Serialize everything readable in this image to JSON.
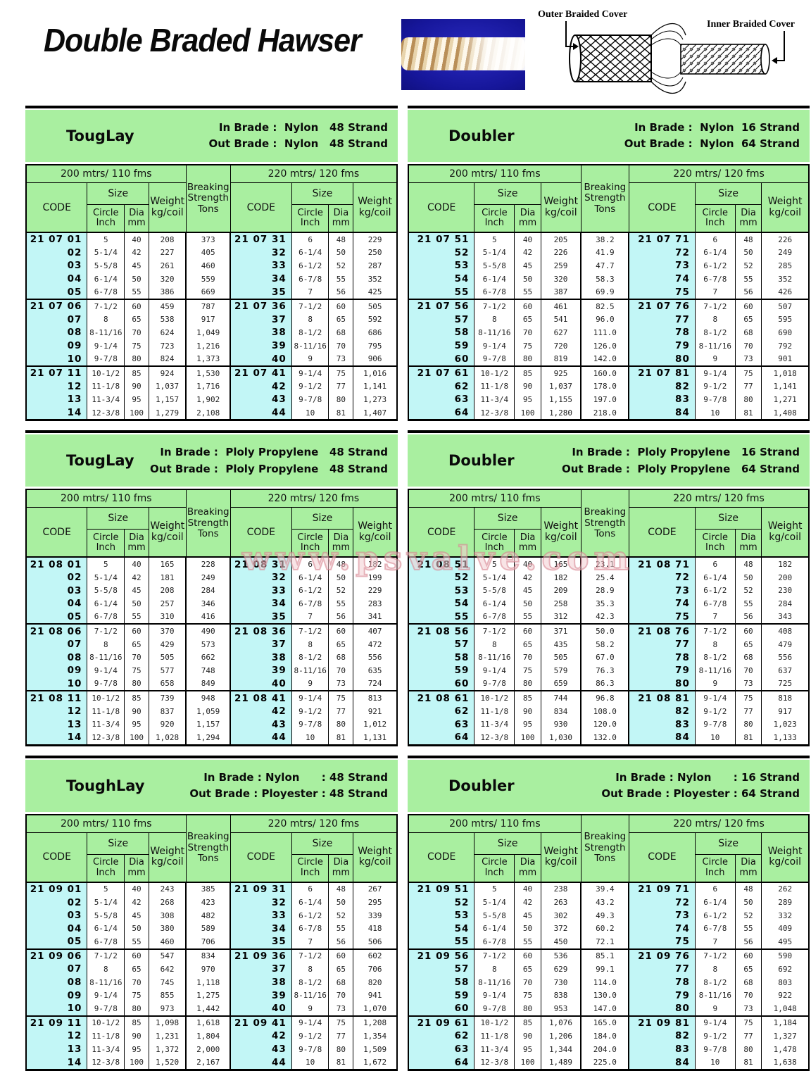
{
  "page": {
    "title": "Double Braded Hawser",
    "watermark": "www.psvalve.com"
  },
  "diagram": {
    "outer_label": "Outer Braided Cover",
    "inner_label": "Inner Braided Cover"
  },
  "table_headers": {
    "span_200": "200 mtrs/ 110 fms",
    "span_220": "220 mtrs/ 120 fms",
    "code": "CODE",
    "size": "Size",
    "circle": "Circle\nInch",
    "dia": "Dia\nmm",
    "weight": "Weight\nkg/coil",
    "breaking": "Breaking\nStrength\nTons"
  },
  "colors": {
    "band_green": "#a9efa0",
    "code_cyan": "#c2f6f6",
    "watermark_pink": "#d5808c"
  },
  "tables": [
    {
      "name": "TougLay",
      "in_brade": "In Brade :  Nylon   48 Strand",
      "out_brade": "Out Brade :  Nylon   48 Strand",
      "rows": [
        [
          "21 07 01",
          "5",
          "40",
          "208",
          "373",
          "21 07 31",
          "6",
          "48",
          "229"
        ],
        [
          "02",
          "5-1/4",
          "42",
          "227",
          "405",
          "32",
          "6-1/4",
          "50",
          "250"
        ],
        [
          "03",
          "5-5/8",
          "45",
          "261",
          "460",
          "33",
          "6-1/2",
          "52",
          "287"
        ],
        [
          "04",
          "6-1/4",
          "50",
          "320",
          "559",
          "34",
          "6-7/8",
          "55",
          "352"
        ],
        [
          "05",
          "6-7/8",
          "55",
          "386",
          "669",
          "35",
          "7",
          "56",
          "425"
        ],
        [
          "21 07 06",
          "7-1/2",
          "60",
          "459",
          "787",
          "21 07 36",
          "7-1/2",
          "60",
          "505"
        ],
        [
          "07",
          "8",
          "65",
          "538",
          "917",
          "37",
          "8",
          "65",
          "592"
        ],
        [
          "08",
          "8-11/16",
          "70",
          "624",
          "1,049",
          "38",
          "8-1/2",
          "68",
          "686"
        ],
        [
          "09",
          "9-1/4",
          "75",
          "723",
          "1,216",
          "39",
          "8-11/16",
          "70",
          "795"
        ],
        [
          "10",
          "9-7/8",
          "80",
          "824",
          "1,373",
          "40",
          "9",
          "73",
          "906"
        ],
        [
          "21 07 11",
          "10-1/2",
          "85",
          "924",
          "1,530",
          "21 07 41",
          "9-1/4",
          "75",
          "1,016"
        ],
        [
          "12",
          "11-1/8",
          "90",
          "1,037",
          "1,716",
          "42",
          "9-1/2",
          "77",
          "1,141"
        ],
        [
          "13",
          "11-3/4",
          "95",
          "1,157",
          "1,902",
          "43",
          "9-7/8",
          "80",
          "1,273"
        ],
        [
          "14",
          "12-3/8",
          "100",
          "1,279",
          "2,108",
          "44",
          "10",
          "81",
          "1,407"
        ]
      ]
    },
    {
      "name": "Doubler",
      "in_brade": "In Brade :  Nylon  16 Strand",
      "out_brade": "Out Brade :  Nylon  64 Strand",
      "rows": [
        [
          "21 07 51",
          "5",
          "40",
          "205",
          "38.2",
          "21 07 71",
          "6",
          "48",
          "226"
        ],
        [
          "52",
          "5-1/4",
          "42",
          "226",
          "41.9",
          "72",
          "6-1/4",
          "50",
          "249"
        ],
        [
          "53",
          "5-5/8",
          "45",
          "259",
          "47.7",
          "73",
          "6-1/2",
          "52",
          "285"
        ],
        [
          "54",
          "6-1/4",
          "50",
          "320",
          "58.3",
          "74",
          "6-7/8",
          "55",
          "352"
        ],
        [
          "55",
          "6-7/8",
          "55",
          "387",
          "69.9",
          "75",
          "7",
          "56",
          "426"
        ],
        [
          "21 07 56",
          "7-1/2",
          "60",
          "461",
          "82.5",
          "21 07 76",
          "7-1/2",
          "60",
          "507"
        ],
        [
          "57",
          "8",
          "65",
          "541",
          "96.0",
          "77",
          "8",
          "65",
          "595"
        ],
        [
          "58",
          "8-11/16",
          "70",
          "627",
          "111.0",
          "78",
          "8-1/2",
          "68",
          "690"
        ],
        [
          "59",
          "9-1/4",
          "75",
          "720",
          "126.0",
          "79",
          "8-11/16",
          "70",
          "792"
        ],
        [
          "60",
          "9-7/8",
          "80",
          "819",
          "142.0",
          "80",
          "9",
          "73",
          "901"
        ],
        [
          "21 07 61",
          "10-1/2",
          "85",
          "925",
          "160.0",
          "21 07 81",
          "9-1/4",
          "75",
          "1,018"
        ],
        [
          "62",
          "11-1/8",
          "90",
          "1,037",
          "178.0",
          "82",
          "9-1/2",
          "77",
          "1,141"
        ],
        [
          "63",
          "11-3/4",
          "95",
          "1,155",
          "197.0",
          "83",
          "9-7/8",
          "80",
          "1,271"
        ],
        [
          "64",
          "12-3/8",
          "100",
          "1,280",
          "218.0",
          "84",
          "10",
          "81",
          "1,408"
        ]
      ]
    },
    {
      "name": "TougLay",
      "in_brade": "In Brade :  Ploly Propylene   48 Strand",
      "out_brade": "Out Brade :  Ploly Propylene   48 Strand",
      "rows": [
        [
          "21 08 01",
          "5",
          "40",
          "165",
          "228",
          "21 08 31",
          "6",
          "48",
          "182"
        ],
        [
          "02",
          "5-1/4",
          "42",
          "181",
          "249",
          "32",
          "6-1/4",
          "50",
          "199"
        ],
        [
          "03",
          "5-5/8",
          "45",
          "208",
          "284",
          "33",
          "6-1/2",
          "52",
          "229"
        ],
        [
          "04",
          "6-1/4",
          "50",
          "257",
          "346",
          "34",
          "6-7/8",
          "55",
          "283"
        ],
        [
          "05",
          "6-7/8",
          "55",
          "310",
          "416",
          "35",
          "7",
          "56",
          "341"
        ],
        [
          "21 08 06",
          "7-1/2",
          "60",
          "370",
          "490",
          "21 08 36",
          "7-1/2",
          "60",
          "407"
        ],
        [
          "07",
          "8",
          "65",
          "429",
          "573",
          "37",
          "8",
          "65",
          "472"
        ],
        [
          "08",
          "8-11/16",
          "70",
          "505",
          "662",
          "38",
          "8-1/2",
          "68",
          "556"
        ],
        [
          "09",
          "9-1/4",
          "75",
          "577",
          "748",
          "39",
          "8-11/16",
          "70",
          "635"
        ],
        [
          "10",
          "9-7/8",
          "80",
          "658",
          "849",
          "40",
          "9",
          "73",
          "724"
        ],
        [
          "21 08 11",
          "10-1/2",
          "85",
          "739",
          "948",
          "21 08 41",
          "9-1/4",
          "75",
          "813"
        ],
        [
          "12",
          "11-1/8",
          "90",
          "837",
          "1,059",
          "42",
          "9-1/2",
          "77",
          "921"
        ],
        [
          "13",
          "11-3/4",
          "95",
          "920",
          "1,157",
          "43",
          "9-7/8",
          "80",
          "1,012"
        ],
        [
          "14",
          "12-3/8",
          "100",
          "1,028",
          "1,294",
          "44",
          "10",
          "81",
          "1,131"
        ]
      ]
    },
    {
      "name": "Doubler",
      "in_brade": "In Brade :  Ploly Propylene   16 Strand",
      "out_brade": "Out Brade :  Ploly Propylene   64 Strand",
      "rows": [
        [
          "21 08 51",
          "5",
          "40",
          "165",
          "23.1",
          "21 08 71",
          "6",
          "48",
          "182"
        ],
        [
          "52",
          "5-1/4",
          "42",
          "182",
          "25.4",
          "72",
          "6-1/4",
          "50",
          "200"
        ],
        [
          "53",
          "5-5/8",
          "45",
          "209",
          "28.9",
          "73",
          "6-1/2",
          "52",
          "230"
        ],
        [
          "54",
          "6-1/4",
          "50",
          "258",
          "35.3",
          "74",
          "6-7/8",
          "55",
          "284"
        ],
        [
          "55",
          "6-7/8",
          "55",
          "312",
          "42.3",
          "75",
          "7",
          "56",
          "343"
        ],
        [
          "21 08 56",
          "7-1/2",
          "60",
          "371",
          "50.0",
          "21 08 76",
          "7-1/2",
          "60",
          "408"
        ],
        [
          "57",
          "8",
          "65",
          "435",
          "58.2",
          "77",
          "8",
          "65",
          "479"
        ],
        [
          "58",
          "8-11/16",
          "70",
          "505",
          "67.0",
          "78",
          "8-1/2",
          "68",
          "556"
        ],
        [
          "59",
          "9-1/4",
          "75",
          "579",
          "76.3",
          "79",
          "8-11/16",
          "70",
          "637"
        ],
        [
          "60",
          "9-7/8",
          "80",
          "659",
          "86.3",
          "80",
          "9",
          "73",
          "725"
        ],
        [
          "21 08 61",
          "10-1/2",
          "85",
          "744",
          "96.8",
          "21 08 81",
          "9-1/4",
          "75",
          "818"
        ],
        [
          "62",
          "11-1/8",
          "90",
          "834",
          "108.0",
          "82",
          "9-1/2",
          "77",
          "917"
        ],
        [
          "63",
          "11-3/4",
          "95",
          "930",
          "120.0",
          "83",
          "9-7/8",
          "80",
          "1,023"
        ],
        [
          "64",
          "12-3/8",
          "100",
          "1,030",
          "132.0",
          "84",
          "10",
          "81",
          "1,133"
        ]
      ]
    },
    {
      "name": "ToughLay",
      "in_brade": "In Brade : Nylon      : 48 Strand",
      "out_brade": "Out Brade : Ployester : 48 Strand",
      "rows": [
        [
          "21 09 01",
          "5",
          "40",
          "243",
          "385",
          "21 09 31",
          "6",
          "48",
          "267"
        ],
        [
          "02",
          "5-1/4",
          "42",
          "268",
          "423",
          "32",
          "6-1/4",
          "50",
          "295"
        ],
        [
          "03",
          "5-5/8",
          "45",
          "308",
          "482",
          "33",
          "6-1/2",
          "52",
          "339"
        ],
        [
          "04",
          "6-1/4",
          "50",
          "380",
          "589",
          "34",
          "6-7/8",
          "55",
          "418"
        ],
        [
          "05",
          "6-7/8",
          "55",
          "460",
          "706",
          "35",
          "7",
          "56",
          "506"
        ],
        [
          "21 09 06",
          "7-1/2",
          "60",
          "547",
          "834",
          "21 09 36",
          "7-1/2",
          "60",
          "602"
        ],
        [
          "07",
          "8",
          "65",
          "642",
          "970",
          "37",
          "8",
          "65",
          "706"
        ],
        [
          "08",
          "8-11/16",
          "70",
          "745",
          "1,118",
          "38",
          "8-1/2",
          "68",
          "820"
        ],
        [
          "09",
          "9-1/4",
          "75",
          "855",
          "1,275",
          "39",
          "8-11/16",
          "70",
          "941"
        ],
        [
          "10",
          "9-7/8",
          "80",
          "973",
          "1,442",
          "40",
          "9",
          "73",
          "1,070"
        ],
        [
          "21 09 11",
          "10-1/2",
          "85",
          "1,098",
          "1,618",
          "21 09 41",
          "9-1/4",
          "75",
          "1,208"
        ],
        [
          "12",
          "11-1/8",
          "90",
          "1,231",
          "1,804",
          "42",
          "9-1/2",
          "77",
          "1,354"
        ],
        [
          "13",
          "11-3/4",
          "95",
          "1,372",
          "2,000",
          "43",
          "9-7/8",
          "80",
          "1,509"
        ],
        [
          "14",
          "12-3/8",
          "100",
          "1,520",
          "2,167",
          "44",
          "10",
          "81",
          "1,672"
        ]
      ]
    },
    {
      "name": "Doubler",
      "in_brade": "In Brade : Nylon      : 16 Strand",
      "out_brade": "Out Brade : Ployester : 64 Strand",
      "rows": [
        [
          "21 09 51",
          "5",
          "40",
          "238",
          "39.4",
          "21 09 71",
          "6",
          "48",
          "262"
        ],
        [
          "52",
          "5-1/4",
          "42",
          "263",
          "43.2",
          "72",
          "6-1/4",
          "50",
          "289"
        ],
        [
          "53",
          "5-5/8",
          "45",
          "302",
          "49.3",
          "73",
          "6-1/2",
          "52",
          "332"
        ],
        [
          "54",
          "6-1/4",
          "50",
          "372",
          "60.2",
          "74",
          "6-7/8",
          "55",
          "409"
        ],
        [
          "55",
          "6-7/8",
          "55",
          "450",
          "72.1",
          "75",
          "7",
          "56",
          "495"
        ],
        [
          "21 09 56",
          "7-1/2",
          "60",
          "536",
          "85.1",
          "21 09 76",
          "7-1/2",
          "60",
          "590"
        ],
        [
          "57",
          "8",
          "65",
          "629",
          "99.1",
          "77",
          "8",
          "65",
          "692"
        ],
        [
          "58",
          "8-11/16",
          "70",
          "730",
          "114.0",
          "78",
          "8-1/2",
          "68",
          "803"
        ],
        [
          "59",
          "9-1/4",
          "75",
          "838",
          "130.0",
          "79",
          "8-11/16",
          "70",
          "922"
        ],
        [
          "60",
          "9-7/8",
          "80",
          "953",
          "147.0",
          "80",
          "9",
          "73",
          "1,048"
        ],
        [
          "21 09 61",
          "10-1/2",
          "85",
          "1,076",
          "165.0",
          "21 09 81",
          "9-1/4",
          "75",
          "1,184"
        ],
        [
          "62",
          "11-1/8",
          "90",
          "1,206",
          "184.0",
          "82",
          "9-1/2",
          "77",
          "1,327"
        ],
        [
          "63",
          "11-3/4",
          "95",
          "1,344",
          "204.0",
          "83",
          "9-7/8",
          "80",
          "1,478"
        ],
        [
          "64",
          "12-3/8",
          "100",
          "1,489",
          "225.0",
          "84",
          "10",
          "81",
          "1,638"
        ]
      ]
    }
  ]
}
